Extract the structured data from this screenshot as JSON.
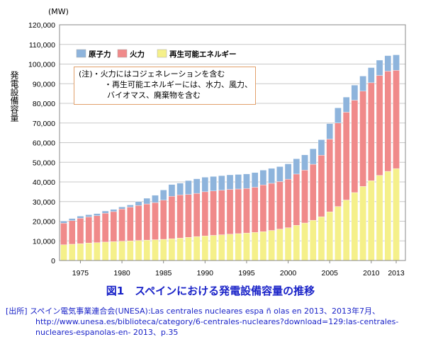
{
  "chart_data": {
    "type": "bar",
    "stacked": true,
    "unit": "(MW)",
    "ylabel": "発電設備容量",
    "ylim": [
      0,
      120000
    ],
    "yticks": [
      "0",
      "10,000",
      "20,000",
      "30,000",
      "40,000",
      "50,000",
      "60,000",
      "70,000",
      "80,000",
      "90,000",
      "100,000",
      "110,000",
      "120,000"
    ],
    "xticks": [
      "1975",
      "1980",
      "1985",
      "1990",
      "1995",
      "2000",
      "2005",
      "2010",
      "2013"
    ],
    "categories": [
      1973,
      1974,
      1975,
      1976,
      1977,
      1978,
      1979,
      1980,
      1981,
      1982,
      1983,
      1984,
      1985,
      1986,
      1987,
      1988,
      1989,
      1990,
      1991,
      1992,
      1993,
      1994,
      1995,
      1996,
      1997,
      1998,
      1999,
      2000,
      2001,
      2002,
      2003,
      2004,
      2005,
      2006,
      2007,
      2008,
      2009,
      2010,
      2011,
      2012,
      2013
    ],
    "series": [
      {
        "name": "再生可能エネルギー",
        "color": "#f5f08a",
        "values": [
          8000,
          8300,
          8600,
          8900,
          9100,
          9400,
          9600,
          9800,
          10000,
          10200,
          10400,
          10600,
          10800,
          11100,
          11400,
          11800,
          12200,
          12500,
          12800,
          13100,
          13400,
          13700,
          14000,
          14300,
          14700,
          15300,
          16000,
          16700,
          17900,
          19100,
          20500,
          22300,
          24800,
          27500,
          30800,
          34600,
          37700,
          40600,
          43300,
          45400,
          46800
        ]
      },
      {
        "name": "火力",
        "color": "#f08a8a",
        "values": [
          11000,
          12000,
          12900,
          13300,
          13700,
          14700,
          15300,
          16400,
          17200,
          17800,
          18400,
          18900,
          19900,
          21600,
          22000,
          21800,
          22000,
          22500,
          22600,
          22700,
          22800,
          22700,
          22700,
          23000,
          23800,
          24000,
          24200,
          24700,
          26100,
          26900,
          28500,
          31300,
          37000,
          42500,
          44700,
          47000,
          48500,
          49900,
          50900,
          51000,
          50000
        ]
      },
      {
        "name": "原子力",
        "color": "#8eb4dc",
        "values": [
          1100,
          1100,
          1100,
          1100,
          1100,
          1100,
          1100,
          1100,
          1100,
          2000,
          2900,
          3700,
          5200,
          6000,
          6000,
          7100,
          7400,
          7400,
          7400,
          7400,
          7400,
          7400,
          7400,
          7500,
          7500,
          7600,
          7600,
          7800,
          7800,
          7800,
          7900,
          7900,
          7900,
          7700,
          7700,
          7700,
          7700,
          7700,
          7800,
          7900,
          7900
        ]
      }
    ],
    "note": [
      "(注)・火力にはコジェネレーションを含む",
      "・再生可能エネルギーには、水力、風力、",
      "バイオマス、廃棄物を含む"
    ],
    "legend_position": "top-left"
  },
  "figure_title": "図1　スペインにおける発電設備容量の推移",
  "source": {
    "line1": "[出所] スペイン電気事業連合会(UNESA):Las centrales nucleares espa ñ olas en 2013、2013年7月、",
    "line2": "http://www.unesa.es/biblioteca/category/6-centrales-nucleares?download=129:las-centrales-",
    "line3": "nucleares-espanolas-en- 2013、p.35"
  }
}
